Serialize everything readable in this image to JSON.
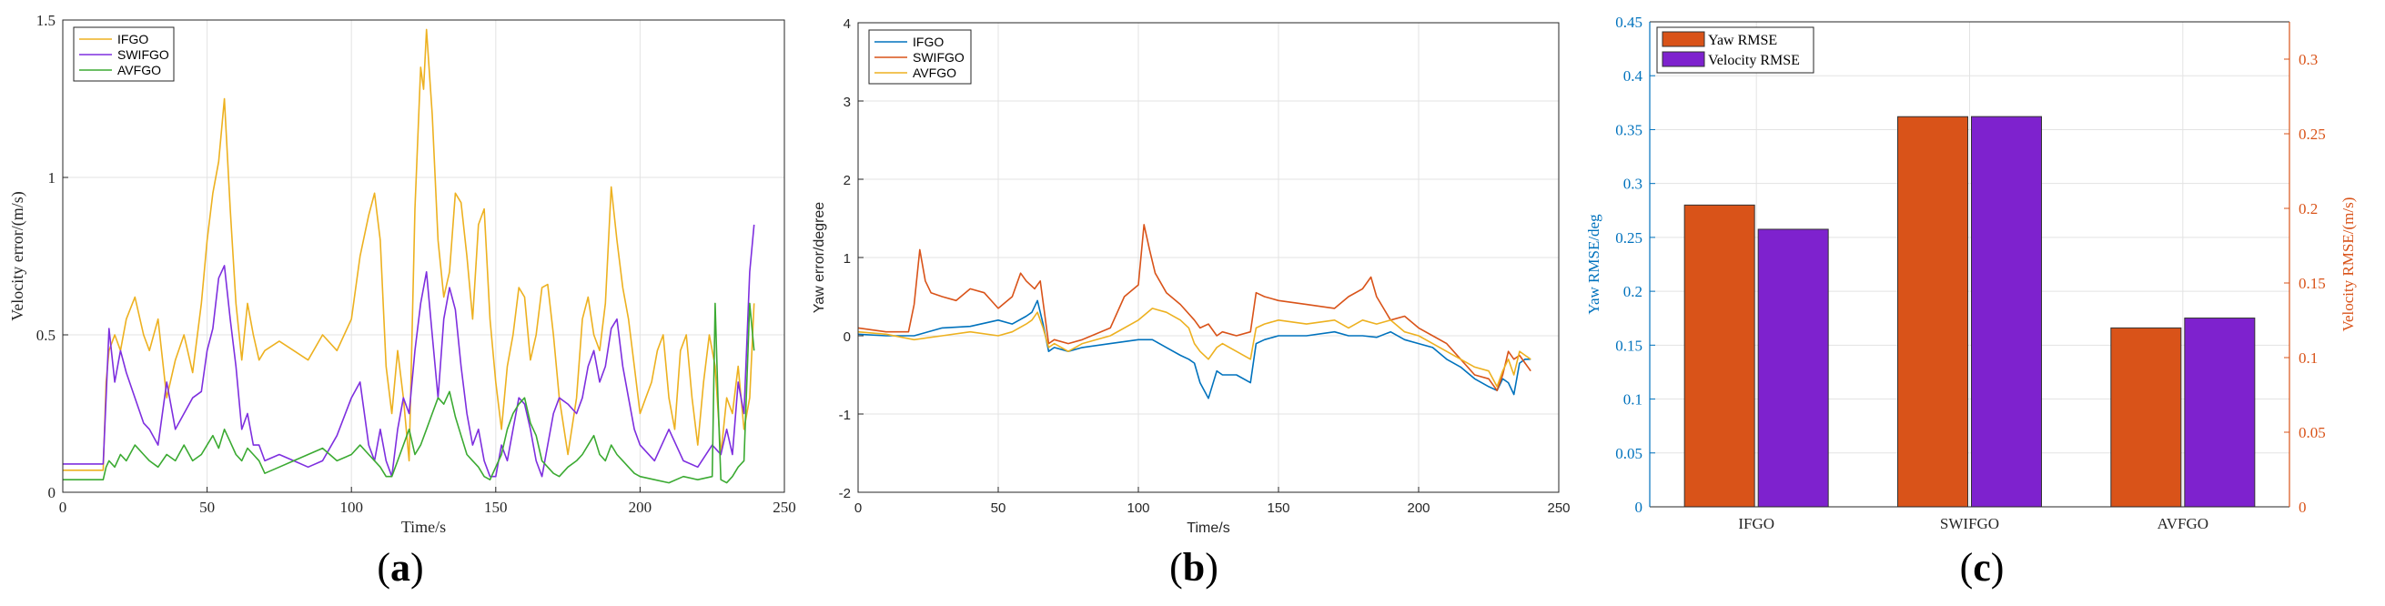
{
  "chart_data": [
    {
      "type": "line",
      "panel_label": "a",
      "xlabel": "Time/s",
      "ylabel": "Velocity error/(m/s)",
      "xlim": [
        0,
        250
      ],
      "ylim": [
        0,
        1.5
      ],
      "xticks": [
        "0",
        "50",
        "100",
        "150",
        "200",
        "250"
      ],
      "yticks": [
        "0",
        "0.5",
        "1",
        "1.5"
      ],
      "grid": true,
      "legend": "top-left",
      "series": [
        {
          "name": "IFGO",
          "color": "#EDB120",
          "x": [
            0,
            14,
            15,
            16,
            18,
            20,
            22,
            25,
            28,
            30,
            33,
            36,
            39,
            42,
            45,
            48,
            50,
            52,
            54,
            56,
            58,
            60,
            62,
            64,
            66,
            68,
            70,
            75,
            80,
            85,
            90,
            95,
            100,
            103,
            106,
            108,
            110,
            112,
            114,
            116,
            118,
            120,
            122,
            124,
            125,
            126,
            128,
            130,
            132,
            134,
            136,
            138,
            140,
            142,
            144,
            146,
            148,
            150,
            152,
            154,
            156,
            158,
            160,
            162,
            164,
            166,
            168,
            170,
            172,
            175,
            178,
            180,
            182,
            184,
            186,
            188,
            190,
            192,
            194,
            196,
            198,
            200,
            202,
            204,
            206,
            208,
            210,
            212,
            214,
            216,
            218,
            220,
            222,
            224,
            226,
            228,
            230,
            232,
            234,
            236,
            238,
            239.5
          ],
          "y": [
            0.07,
            0.07,
            0.35,
            0.45,
            0.5,
            0.45,
            0.55,
            0.62,
            0.5,
            0.45,
            0.55,
            0.3,
            0.42,
            0.5,
            0.38,
            0.6,
            0.8,
            0.95,
            1.05,
            1.25,
            0.9,
            0.6,
            0.42,
            0.6,
            0.5,
            0.42,
            0.45,
            0.48,
            0.45,
            0.42,
            0.5,
            0.45,
            0.55,
            0.75,
            0.88,
            0.95,
            0.8,
            0.4,
            0.25,
            0.45,
            0.3,
            0.1,
            0.9,
            1.35,
            1.28,
            1.47,
            1.2,
            0.8,
            0.62,
            0.7,
            0.95,
            0.92,
            0.75,
            0.55,
            0.85,
            0.9,
            0.55,
            0.35,
            0.2,
            0.4,
            0.5,
            0.65,
            0.62,
            0.42,
            0.5,
            0.65,
            0.66,
            0.5,
            0.3,
            0.12,
            0.3,
            0.55,
            0.62,
            0.5,
            0.45,
            0.6,
            0.97,
            0.8,
            0.65,
            0.55,
            0.4,
            0.25,
            0.3,
            0.35,
            0.45,
            0.5,
            0.3,
            0.2,
            0.45,
            0.5,
            0.3,
            0.15,
            0.35,
            0.5,
            0.4,
            0.12,
            0.3,
            0.25,
            0.4,
            0.2,
            0.3,
            0.6
          ]
        },
        {
          "name": "SWIFGO",
          "color": "#7E2FDF",
          "x": [
            0,
            14,
            15,
            16,
            18,
            20,
            22,
            25,
            28,
            30,
            33,
            36,
            39,
            42,
            45,
            48,
            50,
            52,
            54,
            56,
            58,
            60,
            62,
            64,
            66,
            68,
            70,
            75,
            80,
            85,
            90,
            95,
            100,
            103,
            106,
            108,
            110,
            112,
            114,
            116,
            118,
            120,
            122,
            124,
            126,
            128,
            130,
            132,
            134,
            136,
            138,
            140,
            142,
            144,
            146,
            148,
            150,
            152,
            154,
            156,
            158,
            160,
            162,
            164,
            166,
            168,
            170,
            172,
            175,
            178,
            180,
            182,
            184,
            186,
            188,
            190,
            192,
            194,
            196,
            198,
            200,
            205,
            210,
            215,
            220,
            225,
            228,
            230,
            232,
            234,
            236,
            238,
            239.5
          ],
          "y": [
            0.09,
            0.09,
            0.3,
            0.52,
            0.35,
            0.45,
            0.38,
            0.3,
            0.22,
            0.2,
            0.15,
            0.35,
            0.2,
            0.25,
            0.3,
            0.32,
            0.45,
            0.52,
            0.68,
            0.72,
            0.55,
            0.4,
            0.2,
            0.25,
            0.15,
            0.15,
            0.1,
            0.12,
            0.1,
            0.08,
            0.1,
            0.18,
            0.3,
            0.35,
            0.15,
            0.1,
            0.2,
            0.1,
            0.05,
            0.2,
            0.3,
            0.25,
            0.45,
            0.6,
            0.7,
            0.5,
            0.3,
            0.55,
            0.65,
            0.58,
            0.4,
            0.25,
            0.15,
            0.2,
            0.1,
            0.05,
            0.05,
            0.15,
            0.1,
            0.2,
            0.3,
            0.28,
            0.2,
            0.1,
            0.05,
            0.15,
            0.25,
            0.3,
            0.28,
            0.25,
            0.3,
            0.4,
            0.45,
            0.35,
            0.4,
            0.52,
            0.55,
            0.4,
            0.3,
            0.2,
            0.15,
            0.1,
            0.2,
            0.1,
            0.08,
            0.15,
            0.12,
            0.2,
            0.12,
            0.35,
            0.25,
            0.7,
            0.85
          ]
        },
        {
          "name": "AVFGO",
          "color": "#3BAA32",
          "x": [
            0,
            14,
            15,
            16,
            18,
            20,
            22,
            25,
            28,
            30,
            33,
            36,
            39,
            42,
            45,
            48,
            50,
            52,
            54,
            56,
            58,
            60,
            62,
            64,
            66,
            68,
            70,
            75,
            80,
            85,
            90,
            95,
            100,
            103,
            106,
            108,
            110,
            112,
            114,
            116,
            118,
            120,
            122,
            124,
            126,
            128,
            130,
            132,
            134,
            136,
            138,
            140,
            142,
            144,
            146,
            148,
            150,
            152,
            154,
            156,
            158,
            160,
            162,
            164,
            166,
            168,
            170,
            172,
            175,
            178,
            180,
            182,
            184,
            186,
            188,
            190,
            192,
            194,
            196,
            198,
            200,
            205,
            210,
            215,
            220,
            225,
            226,
            227,
            228,
            230,
            232,
            234,
            236,
            238,
            239.5
          ],
          "y": [
            0.04,
            0.04,
            0.08,
            0.1,
            0.08,
            0.12,
            0.1,
            0.15,
            0.12,
            0.1,
            0.08,
            0.12,
            0.1,
            0.15,
            0.1,
            0.12,
            0.15,
            0.18,
            0.14,
            0.2,
            0.16,
            0.12,
            0.1,
            0.14,
            0.12,
            0.1,
            0.06,
            0.08,
            0.1,
            0.12,
            0.14,
            0.1,
            0.12,
            0.15,
            0.12,
            0.1,
            0.08,
            0.05,
            0.05,
            0.1,
            0.15,
            0.2,
            0.12,
            0.15,
            0.2,
            0.25,
            0.3,
            0.28,
            0.32,
            0.24,
            0.18,
            0.12,
            0.1,
            0.08,
            0.05,
            0.04,
            0.08,
            0.12,
            0.2,
            0.25,
            0.28,
            0.3,
            0.22,
            0.18,
            0.1,
            0.08,
            0.06,
            0.05,
            0.08,
            0.1,
            0.12,
            0.15,
            0.18,
            0.12,
            0.1,
            0.15,
            0.12,
            0.1,
            0.08,
            0.06,
            0.05,
            0.04,
            0.03,
            0.05,
            0.04,
            0.05,
            0.6,
            0.3,
            0.04,
            0.03,
            0.05,
            0.08,
            0.1,
            0.6,
            0.45
          ]
        }
      ]
    },
    {
      "type": "line",
      "panel_label": "b",
      "xlabel": "Time/s",
      "ylabel": "Yaw error/degree",
      "xlim": [
        0,
        250
      ],
      "ylim": [
        -2,
        4
      ],
      "xticks": [
        "0",
        "50",
        "100",
        "150",
        "200",
        "250"
      ],
      "yticks": [
        "-2",
        "-1",
        "0",
        "1",
        "2",
        "3",
        "4"
      ],
      "grid": true,
      "legend": "top-left",
      "series": [
        {
          "name": "IFGO",
          "color": "#0072BD",
          "x": [
            0,
            10,
            20,
            30,
            40,
            50,
            55,
            60,
            62,
            64,
            66,
            68,
            70,
            75,
            80,
            90,
            100,
            105,
            110,
            115,
            118,
            120,
            122,
            125,
            128,
            130,
            135,
            140,
            142,
            145,
            150,
            160,
            170,
            175,
            180,
            185,
            190,
            195,
            200,
            205,
            210,
            215,
            220,
            225,
            228,
            230,
            232,
            234,
            236,
            238,
            240
          ],
          "y": [
            0.02,
            0.0,
            0.0,
            0.1,
            0.12,
            0.2,
            0.15,
            0.25,
            0.3,
            0.45,
            0.15,
            -0.2,
            -0.15,
            -0.2,
            -0.15,
            -0.1,
            -0.05,
            -0.05,
            -0.15,
            -0.25,
            -0.3,
            -0.35,
            -0.6,
            -0.8,
            -0.45,
            -0.5,
            -0.5,
            -0.6,
            -0.1,
            -0.05,
            0.0,
            0.0,
            0.05,
            0.0,
            0.0,
            -0.02,
            0.05,
            -0.05,
            -0.1,
            -0.15,
            -0.3,
            -0.4,
            -0.55,
            -0.65,
            -0.7,
            -0.55,
            -0.6,
            -0.75,
            -0.35,
            -0.3,
            -0.3
          ]
        },
        {
          "name": "SWIFGO",
          "color": "#D95319",
          "x": [
            0,
            10,
            18,
            20,
            22,
            24,
            26,
            30,
            35,
            40,
            45,
            50,
            55,
            58,
            60,
            63,
            65,
            68,
            70,
            75,
            80,
            90,
            95,
            100,
            102,
            104,
            106,
            110,
            115,
            120,
            122,
            125,
            128,
            130,
            135,
            140,
            142,
            145,
            150,
            160,
            170,
            175,
            180,
            183,
            185,
            190,
            195,
            200,
            205,
            210,
            215,
            220,
            225,
            228,
            230,
            232,
            234,
            236,
            238,
            240
          ],
          "y": [
            0.1,
            0.05,
            0.05,
            0.4,
            1.1,
            0.7,
            0.55,
            0.5,
            0.45,
            0.6,
            0.55,
            0.35,
            0.5,
            0.8,
            0.7,
            0.6,
            0.7,
            -0.1,
            -0.05,
            -0.1,
            -0.05,
            0.1,
            0.5,
            0.65,
            1.42,
            1.1,
            0.8,
            0.55,
            0.4,
            0.2,
            0.1,
            0.15,
            0.0,
            0.05,
            0.0,
            0.05,
            0.55,
            0.5,
            0.45,
            0.4,
            0.35,
            0.5,
            0.6,
            0.75,
            0.5,
            0.2,
            0.25,
            0.1,
            0.0,
            -0.1,
            -0.3,
            -0.5,
            -0.55,
            -0.7,
            -0.5,
            -0.2,
            -0.3,
            -0.25,
            -0.35,
            -0.45
          ]
        },
        {
          "name": "AVFGO",
          "color": "#EDB120",
          "x": [
            0,
            10,
            20,
            30,
            40,
            50,
            55,
            60,
            62,
            64,
            66,
            68,
            70,
            75,
            80,
            90,
            100,
            105,
            110,
            115,
            118,
            120,
            122,
            125,
            128,
            130,
            135,
            140,
            142,
            145,
            150,
            160,
            170,
            175,
            180,
            185,
            190,
            195,
            200,
            205,
            210,
            215,
            220,
            225,
            228,
            230,
            232,
            234,
            236,
            238,
            240
          ],
          "y": [
            0.05,
            0.02,
            -0.05,
            0.0,
            0.05,
            0.0,
            0.05,
            0.15,
            0.2,
            0.3,
            0.1,
            -0.15,
            -0.1,
            -0.2,
            -0.1,
            0.0,
            0.2,
            0.35,
            0.3,
            0.2,
            0.1,
            -0.1,
            -0.2,
            -0.3,
            -0.15,
            -0.1,
            -0.2,
            -0.3,
            0.1,
            0.15,
            0.2,
            0.15,
            0.2,
            0.1,
            0.2,
            0.15,
            0.2,
            0.05,
            0.0,
            -0.1,
            -0.2,
            -0.3,
            -0.4,
            -0.45,
            -0.65,
            -0.45,
            -0.3,
            -0.5,
            -0.2,
            -0.25,
            -0.3
          ]
        }
      ]
    },
    {
      "type": "bar",
      "panel_label": "c",
      "categories": [
        "IFGO",
        "SWIFGO",
        "AVFGO"
      ],
      "ylabel": "Yaw RMSE/deg",
      "y2label": "Velocity RMSE/(m/s)",
      "ylim": [
        0,
        0.45
      ],
      "y2lim": [
        0,
        0.325
      ],
      "yticks": [
        "0",
        "0.05",
        "0.1",
        "0.15",
        "0.2",
        "0.25",
        "0.3",
        "0.35",
        "0.4",
        "0.45"
      ],
      "y2ticks": [
        "0",
        "0.05",
        "0.1",
        "0.15",
        "0.2",
        "0.25",
        "0.3"
      ],
      "grid": true,
      "legend": "top-left",
      "y_color": "#0072BD",
      "y2_color": "#D95319",
      "series": [
        {
          "name": "Yaw RMSE",
          "color": "#D95319",
          "axis": "left",
          "values": [
            0.28,
            0.362,
            0.166
          ]
        },
        {
          "name": "Velocity RMSE",
          "color": "#7E22CE",
          "axis": "right",
          "values": [
            0.186,
            0.2615,
            0.1265
          ]
        }
      ]
    }
  ],
  "panel_labels": [
    "(a)",
    "(b)",
    "(c)"
  ]
}
